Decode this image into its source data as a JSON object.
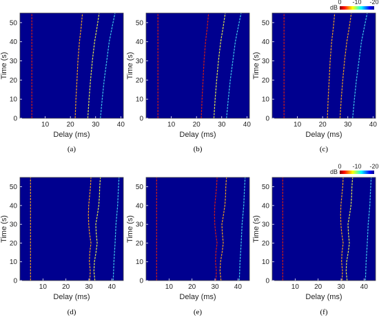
{
  "chart_data": [
    {
      "type": "heatmap",
      "panel_label": "(a)",
      "xlabel": "Delay (ms)",
      "ylabel": "Time (s)",
      "xlim": [
        0,
        41
      ],
      "ylim": [
        0,
        55
      ],
      "xticks": [
        10,
        20,
        30,
        40
      ],
      "yticks": [
        0,
        10,
        20,
        30,
        40,
        50
      ],
      "background_color": "#00008f",
      "colorbar": null,
      "traces": [
        {
          "intensity": "red",
          "points": [
            [
              4.7,
              0
            ],
            [
              4.7,
              55
            ]
          ]
        },
        {
          "intensity": "orange",
          "points": [
            [
              21.9,
              0
            ],
            [
              22.2,
              10
            ],
            [
              22.6,
              20
            ],
            [
              23.0,
              30
            ],
            [
              23.6,
              40
            ],
            [
              24.3,
              48
            ],
            [
              24.8,
              55
            ]
          ]
        },
        {
          "intensity": "yellow",
          "points": [
            [
              26.9,
              0
            ],
            [
              27.4,
              10
            ],
            [
              28.0,
              20
            ],
            [
              28.7,
              30
            ],
            [
              29.6,
              40
            ],
            [
              30.6,
              48
            ],
            [
              31.4,
              55
            ]
          ]
        },
        {
          "intensity": "cyan",
          "points": [
            [
              31.9,
              0
            ],
            [
              32.6,
              10
            ],
            [
              33.4,
              20
            ],
            [
              34.4,
              30
            ],
            [
              35.4,
              40
            ],
            [
              36.6,
              48
            ],
            [
              37.7,
              55
            ]
          ]
        }
      ]
    },
    {
      "type": "heatmap",
      "panel_label": "(b)",
      "xlabel": "Delay (ms)",
      "ylabel": "Time (s)",
      "xlim": [
        0,
        41
      ],
      "ylim": [
        0,
        55
      ],
      "xticks": [
        10,
        20,
        30,
        40
      ],
      "yticks": [
        0,
        10,
        20,
        30,
        40,
        50
      ],
      "background_color": "#00008f",
      "colorbar": null,
      "traces": [
        {
          "intensity": "red",
          "points": [
            [
              4.7,
              0
            ],
            [
              4.7,
              55
            ]
          ]
        },
        {
          "intensity": "red",
          "points": [
            [
              21.9,
              0
            ],
            [
              22.2,
              10
            ],
            [
              22.6,
              20
            ],
            [
              23.0,
              30
            ],
            [
              23.6,
              40
            ],
            [
              24.3,
              48
            ],
            [
              24.8,
              55
            ]
          ]
        },
        {
          "intensity": "yellow",
          "points": [
            [
              26.9,
              0
            ],
            [
              27.4,
              10
            ],
            [
              28.0,
              20
            ],
            [
              28.7,
              30
            ],
            [
              29.6,
              40
            ],
            [
              30.6,
              48
            ],
            [
              31.4,
              55
            ]
          ]
        },
        {
          "intensity": "cyan",
          "points": [
            [
              31.9,
              0
            ],
            [
              32.6,
              10
            ],
            [
              33.4,
              20
            ],
            [
              34.4,
              30
            ],
            [
              35.4,
              40
            ],
            [
              36.6,
              48
            ],
            [
              37.7,
              55
            ]
          ]
        }
      ]
    },
    {
      "type": "heatmap",
      "panel_label": "(c)",
      "xlabel": "Delay (ms)",
      "ylabel": "Time (s)",
      "xlim": [
        0,
        41
      ],
      "ylim": [
        0,
        55
      ],
      "xticks": [
        10,
        20,
        30,
        40
      ],
      "yticks": [
        0,
        10,
        20,
        30,
        40,
        50
      ],
      "background_color": "#00008f",
      "colorbar": {
        "unit": "dB",
        "ticks": [
          "0",
          "-10",
          "-20"
        ],
        "range": [
          0,
          -20
        ]
      },
      "traces": [
        {
          "intensity": "red",
          "points": [
            [
              4.7,
              0
            ],
            [
              4.7,
              55
            ]
          ]
        },
        {
          "intensity": "orange",
          "points": [
            [
              21.9,
              0
            ],
            [
              22.2,
              10
            ],
            [
              22.6,
              20
            ],
            [
              23.0,
              30
            ],
            [
              23.6,
              40
            ],
            [
              24.3,
              48
            ],
            [
              24.8,
              55
            ]
          ]
        },
        {
          "intensity": "orange",
          "points": [
            [
              26.9,
              0
            ],
            [
              27.4,
              10
            ],
            [
              28.0,
              20
            ],
            [
              28.7,
              30
            ],
            [
              29.6,
              40
            ],
            [
              30.6,
              48
            ],
            [
              31.4,
              55
            ]
          ]
        },
        {
          "intensity": "cyan",
          "points": [
            [
              31.9,
              0
            ],
            [
              32.6,
              10
            ],
            [
              33.4,
              20
            ],
            [
              34.4,
              30
            ],
            [
              35.4,
              40
            ],
            [
              36.6,
              48
            ],
            [
              37.7,
              55
            ]
          ]
        }
      ]
    },
    {
      "type": "heatmap",
      "panel_label": "(d)",
      "xlabel": "Delay (ms)",
      "ylabel": "Time (s)",
      "xlim": [
        0,
        45
      ],
      "ylim": [
        0,
        55
      ],
      "xticks": [
        10,
        20,
        30,
        40
      ],
      "yticks": [
        0,
        10,
        20,
        30,
        40,
        50
      ],
      "background_color": "#00008f",
      "colorbar": null,
      "traces": [
        {
          "intensity": "orange",
          "points": [
            [
              4.6,
              0
            ],
            [
              4.6,
              55
            ]
          ]
        },
        {
          "intensity": "orange",
          "points": [
            [
              30.4,
              0
            ],
            [
              30.6,
              5
            ],
            [
              30.2,
              10
            ],
            [
              30.4,
              15
            ],
            [
              30.9,
              20
            ],
            [
              30.3,
              25
            ],
            [
              29.9,
              30
            ],
            [
              29.8,
              35
            ],
            [
              29.9,
              40
            ],
            [
              30.3,
              45
            ],
            [
              30.7,
              50
            ],
            [
              30.9,
              55
            ]
          ]
        },
        {
          "intensity": "yellow",
          "points": [
            [
              32.6,
              0
            ],
            [
              32.2,
              5
            ],
            [
              32.4,
              10
            ],
            [
              33.1,
              15
            ],
            [
              33.6,
              20
            ],
            [
              33.2,
              25
            ],
            [
              33.0,
              30
            ],
            [
              33.7,
              35
            ],
            [
              34.3,
              40
            ],
            [
              34.6,
              45
            ],
            [
              34.7,
              50
            ],
            [
              35.0,
              55
            ]
          ]
        },
        {
          "intensity": "cyan",
          "points": [
            [
              40.6,
              0
            ],
            [
              40.9,
              10
            ],
            [
              41.4,
              20
            ],
            [
              41.8,
              30
            ],
            [
              42.5,
              40
            ],
            [
              42.8,
              48
            ],
            [
              43.1,
              55
            ]
          ]
        }
      ]
    },
    {
      "type": "heatmap",
      "panel_label": "(e)",
      "xlabel": "Delay (ms)",
      "ylabel": "Time (s)",
      "xlim": [
        0,
        45
      ],
      "ylim": [
        0,
        55
      ],
      "xticks": [
        10,
        20,
        30,
        40
      ],
      "yticks": [
        0,
        10,
        20,
        30,
        40,
        50
      ],
      "background_color": "#00008f",
      "colorbar": null,
      "traces": [
        {
          "intensity": "red",
          "points": [
            [
              4.6,
              0
            ],
            [
              4.6,
              55
            ]
          ]
        },
        {
          "intensity": "red",
          "points": [
            [
              30.4,
              0
            ],
            [
              30.6,
              5
            ],
            [
              30.2,
              10
            ],
            [
              30.4,
              15
            ],
            [
              30.9,
              20
            ],
            [
              30.3,
              25
            ],
            [
              29.9,
              30
            ],
            [
              29.8,
              35
            ],
            [
              29.9,
              40
            ],
            [
              30.3,
              45
            ],
            [
              30.7,
              50
            ],
            [
              30.9,
              55
            ]
          ]
        },
        {
          "intensity": "orange",
          "points": [
            [
              32.6,
              0
            ],
            [
              32.2,
              5
            ],
            [
              32.4,
              10
            ],
            [
              33.1,
              15
            ],
            [
              33.6,
              20
            ],
            [
              33.2,
              25
            ],
            [
              33.0,
              30
            ],
            [
              33.7,
              35
            ],
            [
              34.3,
              40
            ],
            [
              34.6,
              45
            ],
            [
              34.7,
              50
            ],
            [
              35.0,
              55
            ]
          ]
        },
        {
          "intensity": "cyan",
          "points": [
            [
              40.6,
              0
            ],
            [
              40.9,
              10
            ],
            [
              41.4,
              20
            ],
            [
              41.8,
              30
            ],
            [
              42.5,
              40
            ],
            [
              42.8,
              48
            ],
            [
              43.1,
              55
            ]
          ]
        }
      ]
    },
    {
      "type": "heatmap",
      "panel_label": "(f)",
      "xlabel": "Delay (ms)",
      "ylabel": "Time (s)",
      "xlim": [
        0,
        45
      ],
      "ylim": [
        0,
        55
      ],
      "xticks": [
        10,
        20,
        30,
        40
      ],
      "yticks": [
        0,
        10,
        20,
        30,
        40,
        50
      ],
      "background_color": "#00008f",
      "colorbar": {
        "unit": "dB",
        "ticks": [
          "0",
          "-10",
          "-20"
        ],
        "range": [
          0,
          -20
        ]
      },
      "traces": [
        {
          "intensity": "red",
          "points": [
            [
              4.6,
              0
            ],
            [
              4.6,
              55
            ]
          ]
        },
        {
          "intensity": "orange",
          "points": [
            [
              30.4,
              0
            ],
            [
              30.6,
              5
            ],
            [
              30.2,
              10
            ],
            [
              30.4,
              15
            ],
            [
              30.9,
              20
            ],
            [
              30.3,
              25
            ],
            [
              29.9,
              30
            ],
            [
              29.8,
              35
            ],
            [
              29.9,
              40
            ],
            [
              30.3,
              45
            ],
            [
              30.7,
              50
            ],
            [
              30.9,
              55
            ]
          ]
        },
        {
          "intensity": "yellow",
          "points": [
            [
              32.6,
              0
            ],
            [
              32.2,
              5
            ],
            [
              32.4,
              10
            ],
            [
              33.1,
              15
            ],
            [
              33.6,
              20
            ],
            [
              33.2,
              25
            ],
            [
              33.0,
              30
            ],
            [
              33.7,
              35
            ],
            [
              34.3,
              40
            ],
            [
              34.6,
              45
            ],
            [
              34.7,
              50
            ],
            [
              35.0,
              55
            ]
          ]
        },
        {
          "intensity": "cyan",
          "points": [
            [
              40.6,
              0
            ],
            [
              40.9,
              10
            ],
            [
              41.4,
              20
            ],
            [
              41.8,
              30
            ],
            [
              42.5,
              40
            ],
            [
              42.8,
              48
            ],
            [
              43.1,
              55
            ]
          ]
        }
      ]
    }
  ],
  "colors": {
    "red": "#d51d10",
    "orange": "#f3a21c",
    "yellow": "#e4e94a",
    "cyan": "#40c8e8",
    "colormap": [
      "#7f0000",
      "#ff0000",
      "#ff8000",
      "#ffff00",
      "#80ff80",
      "#00ffff",
      "#0080ff",
      "#0000ff",
      "#00008f"
    ]
  }
}
